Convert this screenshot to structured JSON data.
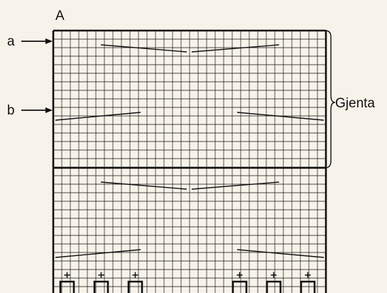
{
  "chart_label": "A",
  "markers": [
    {
      "label": "a"
    },
    {
      "label": "b"
    }
  ],
  "repeat_label": "Gjenta",
  "plus_symbol": "+",
  "colors": {
    "background": "#f8f3ea",
    "grid": "#111111",
    "ink": "#111111"
  }
}
